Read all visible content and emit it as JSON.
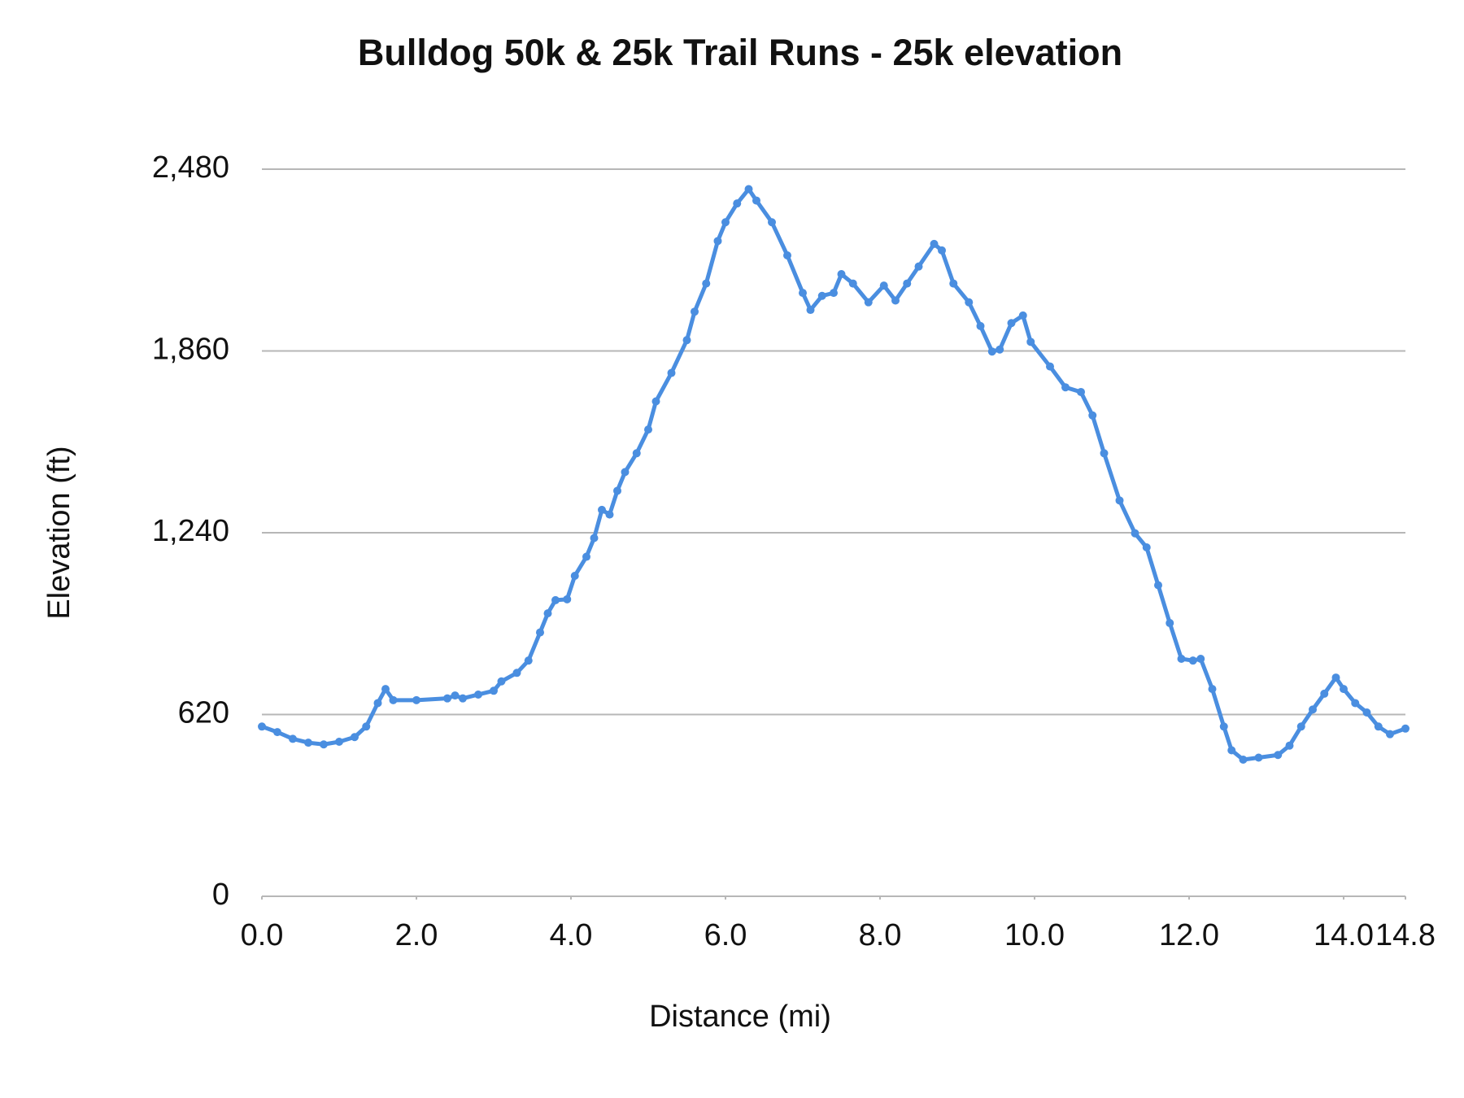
{
  "chart_data": {
    "type": "line",
    "title": "Bulldog 50k & 25k Trail Runs - 25k elevation",
    "x_label": "Distance (mi)",
    "y_label": "Elevation (ft)",
    "x": [
      0.0,
      0.2,
      0.4,
      0.6,
      0.8,
      1.0,
      1.2,
      1.35,
      1.5,
      1.6,
      1.7,
      2.0,
      2.4,
      2.5,
      2.6,
      2.8,
      3.0,
      3.1,
      3.3,
      3.45,
      3.6,
      3.7,
      3.8,
      3.95,
      4.05,
      4.2,
      4.3,
      4.4,
      4.5,
      4.6,
      4.7,
      4.85,
      5.0,
      5.1,
      5.3,
      5.5,
      5.6,
      5.75,
      5.9,
      6.0,
      6.15,
      6.3,
      6.4,
      6.6,
      6.8,
      7.0,
      7.1,
      7.25,
      7.4,
      7.5,
      7.65,
      7.85,
      8.05,
      8.2,
      8.35,
      8.5,
      8.7,
      8.8,
      8.95,
      9.15,
      9.3,
      9.45,
      9.55,
      9.7,
      9.85,
      9.95,
      10.2,
      10.4,
      10.6,
      10.75,
      10.9,
      11.1,
      11.3,
      11.45,
      11.6,
      11.75,
      11.9,
      12.05,
      12.15,
      12.3,
      12.45,
      12.55,
      12.7,
      12.9,
      13.15,
      13.3,
      13.45,
      13.6,
      13.75,
      13.9,
      14.0,
      14.15,
      14.3,
      14.45,
      14.6,
      14.8
    ],
    "series": [
      {
        "name": "Elevation",
        "color": "#4a8ee0",
        "values": [
          579,
          560,
          537,
          524,
          518,
          527,
          543,
          579,
          659,
          707,
          669,
          669,
          675,
          685,
          675,
          688,
          701,
          733,
          762,
          804,
          900,
          965,
          1010,
          1013,
          1093,
          1158,
          1222,
          1318,
          1302,
          1383,
          1447,
          1511,
          1592,
          1688,
          1785,
          1897,
          1994,
          2090,
          2235,
          2299,
          2363,
          2412,
          2373,
          2299,
          2186,
          2058,
          2000,
          2048,
          2058,
          2122,
          2090,
          2026,
          2083,
          2032,
          2090,
          2148,
          2225,
          2203,
          2090,
          2026,
          1945,
          1858,
          1865,
          1955,
          1981,
          1891,
          1807,
          1736,
          1720,
          1640,
          1511,
          1350,
          1238,
          1190,
          1061,
          932,
          810,
          804,
          810,
          707,
          579,
          498,
          466,
          473,
          482,
          514,
          579,
          637,
          691,
          746,
          707,
          659,
          627,
          579,
          553,
          572
        ]
      }
    ],
    "xlim": [
      0,
      14.8
    ],
    "xticks": [
      {
        "value": 0,
        "label": "0.0"
      },
      {
        "value": 2,
        "label": "2.0"
      },
      {
        "value": 4,
        "label": "4.0"
      },
      {
        "value": 6,
        "label": "6.0"
      },
      {
        "value": 8,
        "label": "8.0"
      },
      {
        "value": 10,
        "label": "10.0"
      },
      {
        "value": 12,
        "label": "12.0"
      },
      {
        "value": 14,
        "label": "14.0"
      },
      14.8
    ],
    "ylim": [
      0,
      2480
    ],
    "yticks": [
      0,
      {
        "value": 620,
        "label": "620"
      },
      {
        "value": 1240,
        "label": "1,240"
      },
      {
        "value": 1860,
        "label": "1,860"
      },
      {
        "value": 2480,
        "label": "2,480"
      }
    ],
    "grid": true
  }
}
